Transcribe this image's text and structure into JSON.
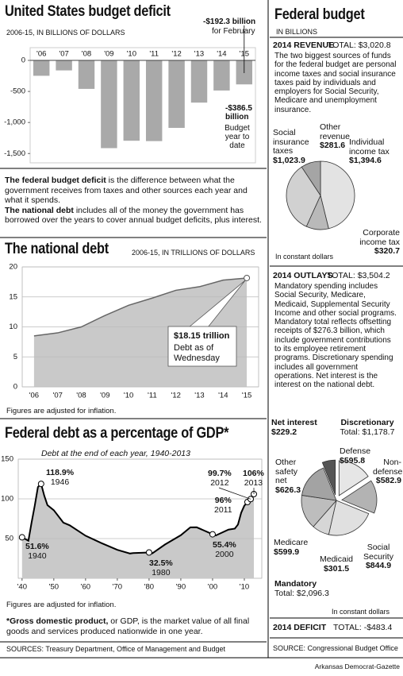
{
  "chart_data": [
    {
      "type": "bar",
      "title": "United States budget deficit",
      "subtitle": "2006-15, IN BILLIONS OF DOLLARS",
      "categories": [
        "'06",
        "'07",
        "'08",
        "'09",
        "'10",
        "'11",
        "'12",
        "'13",
        "'14",
        "'15"
      ],
      "values": [
        -248,
        -161,
        -459,
        -1413,
        -1294,
        -1300,
        -1087,
        -680,
        -485,
        -386.5
      ],
      "color": "#a9a9a9",
      "ylim": [
        -1650,
        205
      ],
      "yticks": [
        0,
        -500,
        {
          "value": -1000,
          "label": "-1,000"
        },
        {
          "value": -1500,
          "label": "-1,500"
        }
      ],
      "annotations": [
        "-$192.3 billion",
        "for February",
        "-$386.5 billion",
        "Budget year to date"
      ]
    },
    {
      "type": "area",
      "title": "The national debt",
      "subtitle": "2006-15, IN TRILLIONS OF DOLLARS",
      "categories": [
        "'06",
        "'07",
        "'08",
        "'09",
        "'10",
        "'11",
        "'12",
        "'13",
        "'14",
        "'15"
      ],
      "values": [
        8.5,
        9.0,
        10.0,
        11.9,
        13.6,
        14.8,
        16.1,
        16.7,
        17.8,
        18.15
      ],
      "color": "#c9c9c9",
      "line_color": "#666666",
      "ylim": [
        0,
        20
      ],
      "yticks": [
        0,
        5,
        10,
        15,
        20
      ],
      "grid": true,
      "annotations": [
        "$18.15 trillion",
        "Debt as of Wednesday"
      ],
      "note": "Figures are adjusted for inflation."
    },
    {
      "type": "area",
      "title": "Federal debt as a percentage of GDP*",
      "subtitle": "Debt at the end of each year, 1940-2013",
      "x": [
        1940,
        1942,
        1943,
        1944,
        1945,
        1946,
        1947,
        1948,
        1950,
        1953,
        1955,
        1960,
        1965,
        1970,
        1974,
        1975,
        1980,
        1981,
        1985,
        1990,
        1993,
        1995,
        2000,
        2001,
        2005,
        2007,
        2008,
        2009,
        2010,
        2011,
        2012,
        2013
      ],
      "values": [
        51.6,
        47.3,
        70.2,
        91.5,
        114.9,
        118.9,
        103.9,
        92.1,
        85.7,
        70.1,
        66.7,
        53.6,
        44.3,
        35.8,
        31.2,
        31.7,
        32.5,
        31.3,
        42.5,
        54.2,
        64.1,
        64.2,
        55.4,
        53.9,
        61.3,
        62.5,
        67.7,
        82.4,
        91.4,
        96,
        99.7,
        106
      ],
      "value_labels": [
        "51.6%",
        null,
        null,
        null,
        null,
        "118.9%",
        null,
        null,
        null,
        null,
        null,
        null,
        null,
        null,
        null,
        null,
        "32.5%",
        null,
        null,
        null,
        null,
        null,
        "55.4%",
        null,
        null,
        null,
        null,
        null,
        null,
        "96%",
        "99.7%",
        "106%"
      ],
      "color": "#c9c9c9",
      "line_color": "#000000",
      "xlim": [
        1938.8,
        2015.5
      ],
      "xticks": [
        {
          "value": 1940,
          "label": "'40"
        },
        {
          "value": 1950,
          "label": "'50"
        },
        {
          "value": 1960,
          "label": "'60"
        },
        {
          "value": 1970,
          "label": "'70"
        },
        {
          "value": 1980,
          "label": "'80"
        },
        {
          "value": 1990,
          "label": "'90"
        },
        {
          "value": 2000,
          "label": "'00"
        },
        {
          "value": 2010,
          "label": "'10"
        }
      ],
      "ylim": [
        0,
        150
      ],
      "yticks": [
        50,
        100,
        150
      ],
      "grid": true
    },
    {
      "type": "pie",
      "title": "2014 REVENUE",
      "total": "TOTAL: $3,020.8",
      "description": "The two biggest sources of funds for the federal budget are personal income taxes and social insurance taxes paid by individuals and employers for Social Security, Medicare and unemployment insurance.",
      "categories": [
        "Individual income tax",
        "Corporate income tax",
        "Social insurance taxes",
        "Other revenue"
      ],
      "values": [
        1394.6,
        320.7,
        1023.9,
        281.6
      ],
      "value_labels": [
        "$1,394.6",
        "$320.7",
        "$1,023.9",
        "$281.6"
      ],
      "colors": [
        "#e3e3e3",
        "#b9b9b9",
        "#d1d1d1",
        "#a5a5a5"
      ],
      "note": "In constant dollars"
    },
    {
      "type": "pie",
      "title": "2014 OUTLAYS",
      "total": "TOTAL: $3,504.2",
      "description": "Mandatory spending includes Social Security, Medicare, Medicaid, Supplemental Security Income and other social programs. Mandatory total reflects offsetting receipts of $276.3 billion, which include government contributions to its employee retirement programs. Discretionary spending includes all government operations. Net interest is the interest on the national debt.",
      "categories": [
        "Defense",
        "Non-defense",
        "Social Security",
        "Medicaid",
        "Medicare",
        "Other safety net",
        "Net interest"
      ],
      "values": [
        595.8,
        582.9,
        844.9,
        301.5,
        599.9,
        626.3,
        229.2
      ],
      "value_labels": [
        "$595.8",
        "$582.9",
        "$844.9",
        "$301.5",
        "$599.9",
        "$626.3",
        "$229.2"
      ],
      "colors": [
        "#e6e6e6",
        "#b3b3b3",
        "#e0e0e0",
        "#d6d6d6",
        "#bdbdbd",
        "#a3a3a3",
        "#555555"
      ],
      "exploded": [
        true,
        true,
        false,
        false,
        false,
        false,
        true
      ],
      "groups": [
        {
          "name": "Discretionary",
          "total": "Total: $1,178.7"
        },
        {
          "name": "Mandatory",
          "total": "Total: $2,096.3"
        }
      ],
      "note": "In constant dollars"
    }
  ],
  "deficit_explainer": [
    {
      "term": "The federal budget deficit",
      "text": " is the difference between what the government receives from taxes and other sources each year and what it spends."
    },
    {
      "term": "The national debt",
      "text": " includes all of the money the government has borrowed over the years to cover annual budget deficits, plus interest."
    }
  ],
  "gdp_footnotes": {
    "note": "Figures are adjusted for inflation.",
    "term": "*Gross domestic product,",
    "text": " or GDP, is the market value of all final goods and services produced nationwide in one year."
  },
  "sources_left": "SOURCES: Treasury Department, Office of Management and Budget",
  "federal_budget": {
    "title": "Federal budget",
    "subtitle": "IN BILLIONS"
  },
  "deficit": {
    "title": "2014 DEFICIT",
    "total": "TOTAL: -$483.4"
  },
  "source_right": "SOURCE: Congressional Budget Office",
  "credit": "Arkansas Democrat-Gazette"
}
